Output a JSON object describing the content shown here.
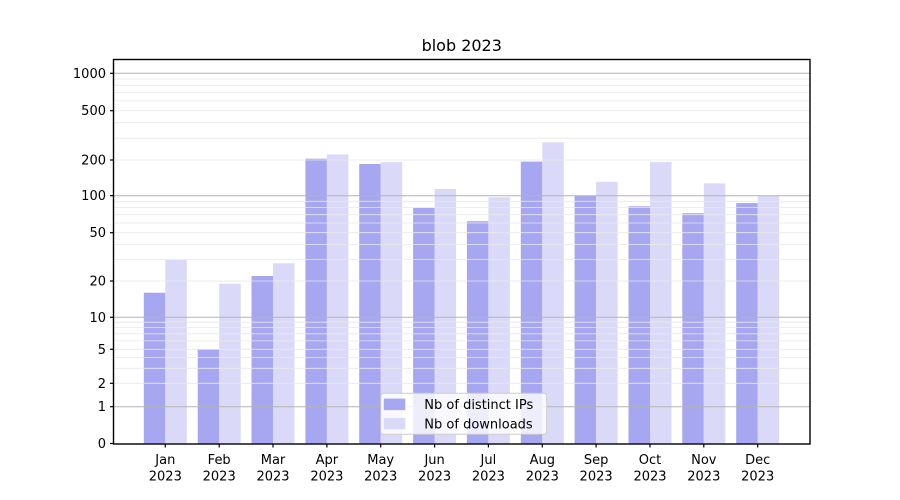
{
  "chart_data": {
    "type": "bar",
    "title": "blob 2023",
    "categories": [
      "Jan",
      "Feb",
      "Mar",
      "Apr",
      "May",
      "Jun",
      "Jul",
      "Aug",
      "Sep",
      "Oct",
      "Nov",
      "Dec"
    ],
    "year": "2023",
    "series": [
      {
        "name": "Nb of distinct IPs",
        "color": "#a6a6f1",
        "values": [
          16,
          5,
          22,
          205,
          185,
          80,
          62,
          194,
          100,
          82,
          72,
          87
        ]
      },
      {
        "name": "Nb of downloads",
        "color": "#dadaf8",
        "values": [
          30,
          19,
          28,
          222,
          192,
          114,
          97,
          278,
          131,
          192,
          127,
          100
        ]
      }
    ],
    "yticks": [
      0,
      1,
      2,
      5,
      10,
      20,
      50,
      100,
      200,
      500,
      1000
    ],
    "yscale": "symlog",
    "ylim": [
      0,
      1300
    ],
    "xlabel": "",
    "ylabel": "",
    "grid": true,
    "legend_position": "lower center",
    "colors": {
      "major_grid": "#b3b3b3",
      "minor_grid": "#e8e8e8",
      "axis": "#000000",
      "legend_bg": "#ffffff",
      "legend_border": "#cccccc"
    }
  }
}
